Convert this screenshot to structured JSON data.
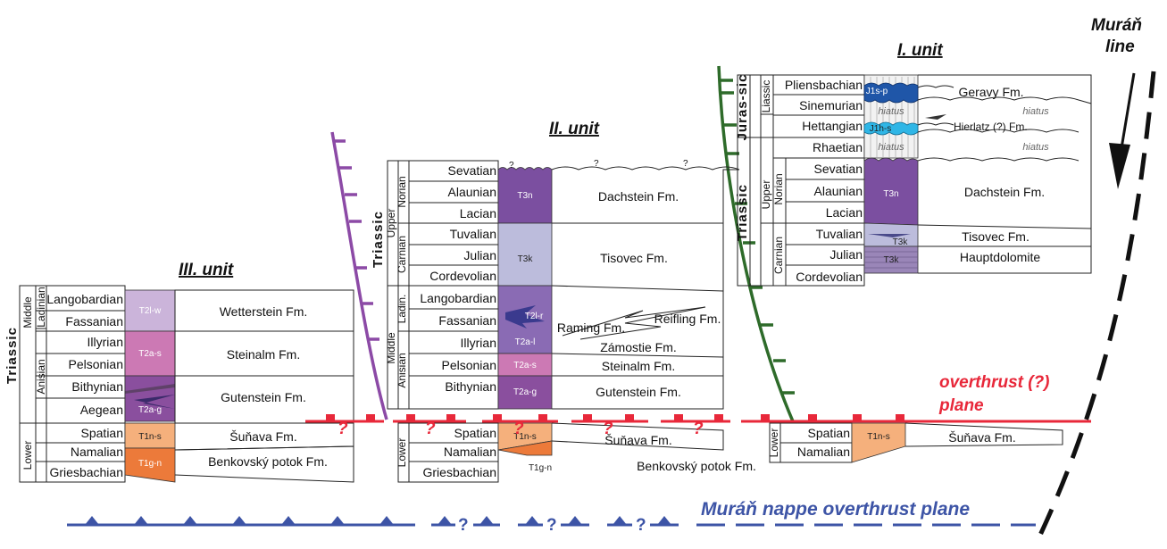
{
  "units": {
    "unit1": "I. unit",
    "unit2": "II. unit",
    "unit3": "III. unit"
  },
  "periods": {
    "triassic": "Triassic",
    "jurassic": "Juras-sic",
    "liassic": "Liassic"
  },
  "epochs": {
    "upper": "Upper",
    "middle": "Middle",
    "lower": "Lower"
  },
  "ages": {
    "norian": "Norian",
    "carnian": "Carnian",
    "ladinian": "Ladinian",
    "ladin": "Ladin.",
    "anisian": "Anisian"
  },
  "stages": {
    "pliensbachian": "Pliensbachian",
    "sinemurian": "Sinemurian",
    "hettangian": "Hettangian",
    "rhaetian": "Rhaetian",
    "sevatian": "Sevatian",
    "alaunian": "Alaunian",
    "lacian": "Lacian",
    "tuvalian": "Tuvalian",
    "julian": "Julian",
    "cordevolian": "Cordevolian",
    "langobardian": "Langobardian",
    "fassanian": "Fassanian",
    "illyrian": "Illyrian",
    "pelsonian": "Pelsonian",
    "bithynian": "Bithynian",
    "aegean": "Aegean",
    "spatian": "Spatian",
    "namalian": "Namalian",
    "griesbachian": "Griesbachian"
  },
  "formations": {
    "geravy": "Geravy Fm.",
    "hierlatz": "Hierlatz (?) Fm.",
    "dachstein": "Dachstein Fm.",
    "tisovec": "Tisovec Fm.",
    "hauptdolomite": "Hauptdolomite",
    "wetterstein": "Wetterstein Fm.",
    "steinalm": "Steinalm Fm.",
    "gutenstein": "Gutenstein Fm.",
    "sunava": "Šuňava Fm.",
    "benkovsky": "Benkovský potok Fm.",
    "reifling": "Reifling Fm.",
    "raming": "Raming Fm.",
    "zamostie": "Zámostie Fm."
  },
  "codes": {
    "J1sp": "J1s-p",
    "J1h": "J1h-s",
    "T3n": "T3n",
    "T3k": "T3k",
    "T2lw": "T2l-w",
    "T2as": "T2a-s",
    "T2ag": "T2a-g",
    "T1ns": "T1n-s",
    "T1gn": "T1g-n",
    "T2lr": "T2l-r",
    "T2al": "T2a-l"
  },
  "labels": {
    "hiatus": "hiatus",
    "question": "?",
    "overthrust_line1": "overthrust (?)",
    "overthrust_line2": "plane",
    "nappe_plane": "Muráň nappe overthrust plane",
    "muran_line1": "Muráň",
    "muran_line2": "line"
  },
  "colors": {
    "norian_purple": "#7b4fa0",
    "carnian_lavender": "#bcbcdc",
    "ladinian_violet": "#a584c4",
    "anisian_pink": "#cc79b4",
    "anisian_purple": "#8a4f9e",
    "lower_orange": "#f5b07c",
    "deep_orange": "#ec7a3a",
    "overthrust_red": "#e8283a",
    "nappe_blue": "#3d54a6",
    "fault_purple": "#8c4aa6",
    "fault_green": "#2e6b2a",
    "jurassic_blue": "#1f56a8",
    "hierlatz_cyan": "#2fb6e6"
  }
}
